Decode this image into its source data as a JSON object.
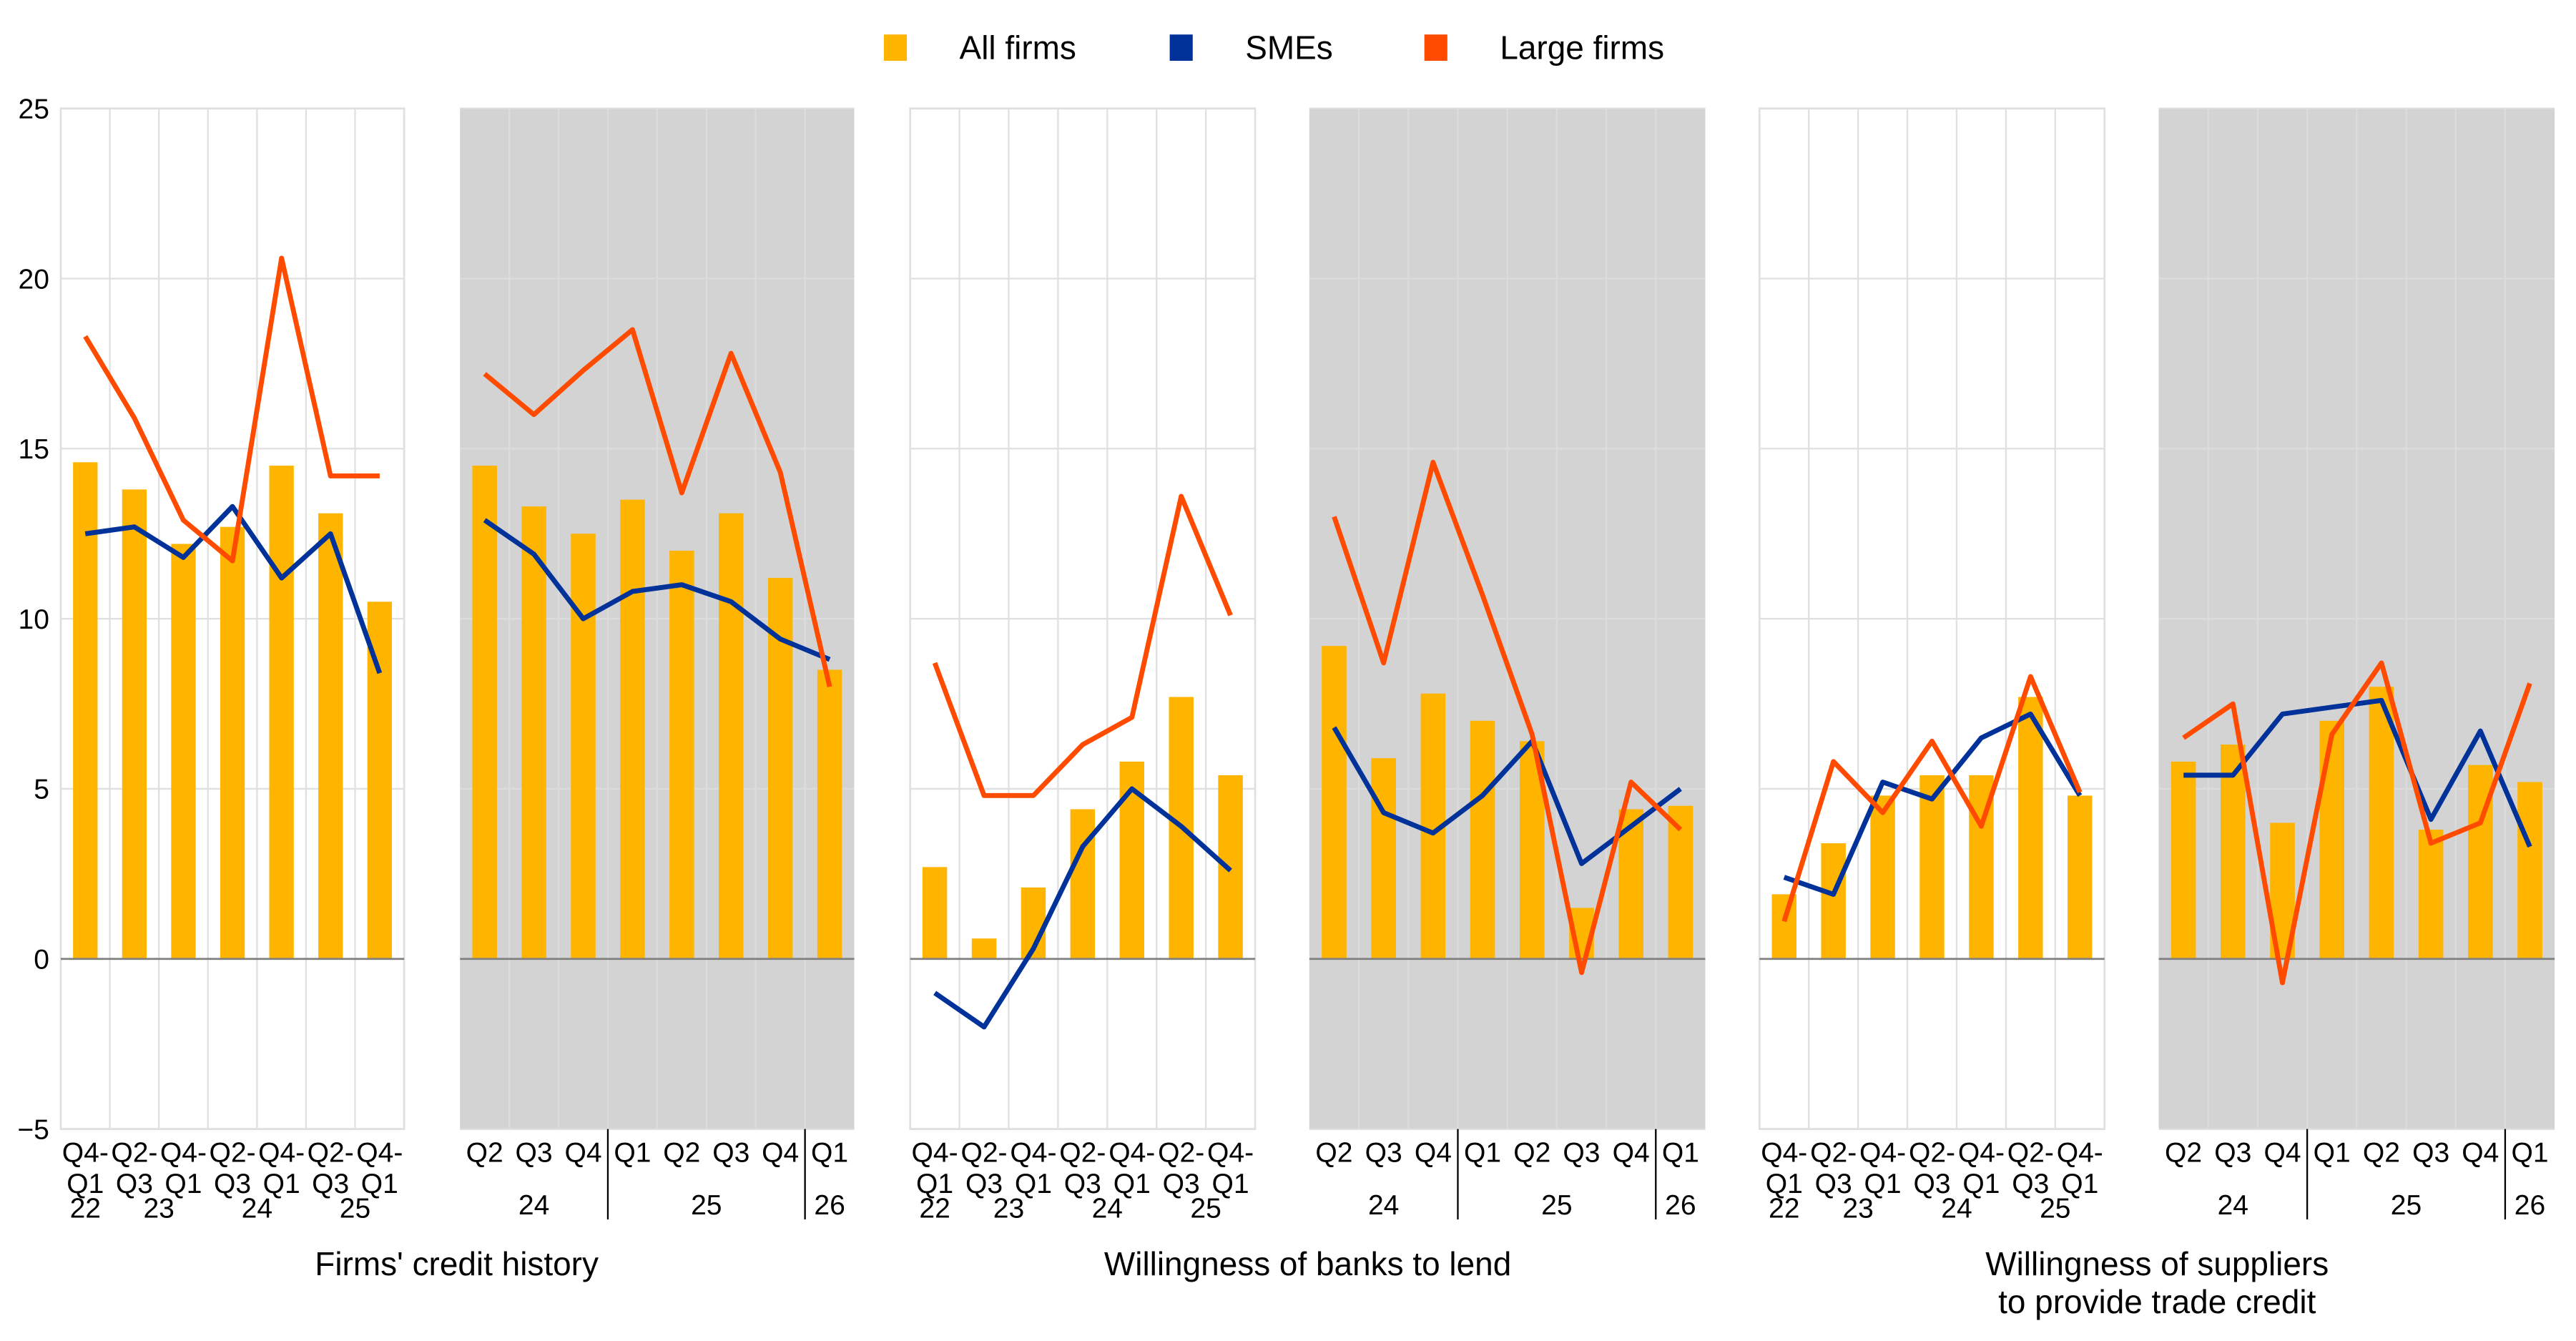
{
  "legend": [
    {
      "name": "All firms",
      "color": "#FFB400",
      "kind": "bar"
    },
    {
      "name": "SMEs",
      "color": "#003299",
      "kind": "line"
    },
    {
      "name": "Large firms",
      "color": "#FF4B00",
      "kind": "line"
    }
  ],
  "colors": {
    "shaded_background": "#D3D3D3",
    "gridline": "#E0E0E0",
    "zero_line": "#808080"
  },
  "chart_data": {
    "type": "bar",
    "ylim": [
      -5,
      25
    ],
    "yticks": [
      -5,
      0,
      5,
      10,
      15,
      20,
      25
    ],
    "legend_position": "top-center",
    "grid": true,
    "groups": [
      {
        "title": [
          "Firms' credit history"
        ]
      },
      {
        "title": [
          "Willingness of banks to lend"
        ]
      },
      {
        "title": [
          "Willingness of suppliers",
          "to provide trade credit"
        ]
      }
    ],
    "panels": [
      {
        "group": 0,
        "shaded": false,
        "categories": [
          "Q4-Q1 22",
          "Q2-Q3 23",
          "Q4-Q1 23",
          "Q2-Q3 24",
          "Q4-Q1 24",
          "Q2-Q3 25",
          "Q4-Q1 25"
        ],
        "tick_top": [
          "Q4-",
          "Q2-",
          "Q4-",
          "Q2-",
          "Q4-",
          "Q2-",
          "Q4-"
        ],
        "tick_mid": [
          "Q1",
          "Q3",
          "Q1",
          "Q3",
          "Q1",
          "Q3",
          "Q1"
        ],
        "year_labels": [
          {
            "text": "22",
            "at": 0
          },
          {
            "text": "23",
            "at": 1.5
          },
          {
            "text": "24",
            "at": 3.5
          },
          {
            "text": "25",
            "at": 5.5
          }
        ],
        "separators": [],
        "series": [
          {
            "name": "All firms",
            "values": [
              14.6,
              13.8,
              12.2,
              12.7,
              14.5,
              13.1,
              10.5
            ]
          },
          {
            "name": "SMEs",
            "values": [
              12.5,
              12.7,
              11.8,
              13.3,
              11.2,
              12.5,
              8.4
            ]
          },
          {
            "name": "Large firms",
            "values": [
              18.3,
              15.9,
              12.9,
              11.7,
              20.6,
              14.2,
              14.2
            ]
          }
        ]
      },
      {
        "group": 0,
        "shaded": true,
        "categories": [
          "Q2 24",
          "Q3 24",
          "Q4 24",
          "Q1 25",
          "Q2 25",
          "Q3 25",
          "Q4 25",
          "Q1 26"
        ],
        "tick_top": [
          "Q2",
          "Q3",
          "Q4",
          "Q1",
          "Q2",
          "Q3",
          "Q4",
          "Q1"
        ],
        "tick_mid": [
          "",
          "",
          "",
          "",
          "",
          "",
          "",
          ""
        ],
        "year_labels": [
          {
            "text": "24",
            "at": 1
          },
          {
            "text": "25",
            "at": 4.5
          },
          {
            "text": "26",
            "at": 7
          }
        ],
        "separators": [
          2.5,
          6.5
        ],
        "series": [
          {
            "name": "All firms",
            "values": [
              14.5,
              13.3,
              12.5,
              13.5,
              12.0,
              13.1,
              11.2,
              8.5
            ]
          },
          {
            "name": "SMEs",
            "values": [
              12.9,
              11.9,
              10.0,
              10.8,
              11.0,
              10.5,
              9.4,
              8.8
            ]
          },
          {
            "name": "Large firms",
            "values": [
              17.2,
              16.0,
              17.3,
              18.5,
              13.7,
              17.8,
              14.3,
              8.0
            ]
          }
        ]
      },
      {
        "group": 1,
        "shaded": false,
        "categories": [
          "Q4-Q1 22",
          "Q2-Q3 23",
          "Q4-Q1 23",
          "Q2-Q3 24",
          "Q4-Q1 24",
          "Q2-Q3 25",
          "Q4-Q1 25"
        ],
        "tick_top": [
          "Q4-",
          "Q2-",
          "Q4-",
          "Q2-",
          "Q4-",
          "Q2-",
          "Q4-"
        ],
        "tick_mid": [
          "Q1",
          "Q3",
          "Q1",
          "Q3",
          "Q1",
          "Q3",
          "Q1"
        ],
        "year_labels": [
          {
            "text": "22",
            "at": 0
          },
          {
            "text": "23",
            "at": 1.5
          },
          {
            "text": "24",
            "at": 3.5
          },
          {
            "text": "25",
            "at": 5.5
          }
        ],
        "separators": [],
        "series": [
          {
            "name": "All firms",
            "values": [
              2.7,
              0.6,
              2.1,
              4.4,
              5.8,
              7.7,
              5.4
            ]
          },
          {
            "name": "SMEs",
            "values": [
              -1.0,
              -2.0,
              0.3,
              3.3,
              5.0,
              3.9,
              2.6
            ]
          },
          {
            "name": "Large firms",
            "values": [
              8.7,
              4.8,
              4.8,
              6.3,
              7.1,
              13.6,
              10.1
            ]
          }
        ]
      },
      {
        "group": 1,
        "shaded": true,
        "categories": [
          "Q2 24",
          "Q3 24",
          "Q4 24",
          "Q1 25",
          "Q2 25",
          "Q3 25",
          "Q4 25",
          "Q1 26"
        ],
        "tick_top": [
          "Q2",
          "Q3",
          "Q4",
          "Q1",
          "Q2",
          "Q3",
          "Q4",
          "Q1"
        ],
        "tick_mid": [
          "",
          "",
          "",
          "",
          "",
          "",
          "",
          ""
        ],
        "year_labels": [
          {
            "text": "24",
            "at": 1
          },
          {
            "text": "25",
            "at": 4.5
          },
          {
            "text": "26",
            "at": 7
          }
        ],
        "separators": [
          2.5,
          6.5
        ],
        "series": [
          {
            "name": "All firms",
            "values": [
              9.2,
              5.9,
              7.8,
              7.0,
              6.4,
              1.5,
              4.4,
              4.5
            ]
          },
          {
            "name": "SMEs",
            "values": [
              6.8,
              4.3,
              3.7,
              4.8,
              6.4,
              2.8,
              3.9,
              5.0
            ]
          },
          {
            "name": "Large firms",
            "values": [
              13.0,
              8.7,
              14.6,
              10.7,
              6.6,
              -0.4,
              5.2,
              3.8
            ]
          }
        ]
      },
      {
        "group": 2,
        "shaded": false,
        "categories": [
          "Q4-Q1 22",
          "Q2-Q3 23",
          "Q4-Q1 23",
          "Q2-Q3 24",
          "Q4-Q1 24",
          "Q2-Q3 25",
          "Q4-Q1 25"
        ],
        "tick_top": [
          "Q4-",
          "Q2-",
          "Q4-",
          "Q2-",
          "Q4-",
          "Q2-",
          "Q4-"
        ],
        "tick_mid": [
          "Q1",
          "Q3",
          "Q1",
          "Q3",
          "Q1",
          "Q3",
          "Q1"
        ],
        "year_labels": [
          {
            "text": "22",
            "at": 0
          },
          {
            "text": "23",
            "at": 1.5
          },
          {
            "text": "24",
            "at": 3.5
          },
          {
            "text": "25",
            "at": 5.5
          }
        ],
        "separators": [],
        "series": [
          {
            "name": "All firms",
            "values": [
              1.9,
              3.4,
              4.8,
              5.4,
              5.4,
              7.7,
              4.8
            ]
          },
          {
            "name": "SMEs",
            "values": [
              2.4,
              1.9,
              5.2,
              4.7,
              6.5,
              7.2,
              4.8
            ]
          },
          {
            "name": "Large firms",
            "values": [
              1.1,
              5.8,
              4.3,
              6.4,
              3.9,
              8.3,
              4.9
            ]
          }
        ]
      },
      {
        "group": 2,
        "shaded": true,
        "categories": [
          "Q2 24",
          "Q3 24",
          "Q4 24",
          "Q1 25",
          "Q2 25",
          "Q3 25",
          "Q4 25",
          "Q1 26"
        ],
        "tick_top": [
          "Q2",
          "Q3",
          "Q4",
          "Q1",
          "Q2",
          "Q3",
          "Q4",
          "Q1"
        ],
        "tick_mid": [
          "",
          "",
          "",
          "",
          "",
          "",
          "",
          ""
        ],
        "year_labels": [
          {
            "text": "24",
            "at": 1
          },
          {
            "text": "25",
            "at": 4.5
          },
          {
            "text": "26",
            "at": 7
          }
        ],
        "separators": [
          2.5,
          6.5
        ],
        "series": [
          {
            "name": "All firms",
            "values": [
              5.8,
              6.3,
              4.0,
              7.0,
              8.0,
              3.8,
              5.7,
              5.2
            ]
          },
          {
            "name": "SMEs",
            "values": [
              5.4,
              5.4,
              7.2,
              7.4,
              7.6,
              4.1,
              6.7,
              3.3
            ]
          },
          {
            "name": "Large firms",
            "values": [
              6.5,
              7.5,
              -0.7,
              6.6,
              8.7,
              3.4,
              4.0,
              8.1
            ]
          }
        ]
      }
    ]
  }
}
